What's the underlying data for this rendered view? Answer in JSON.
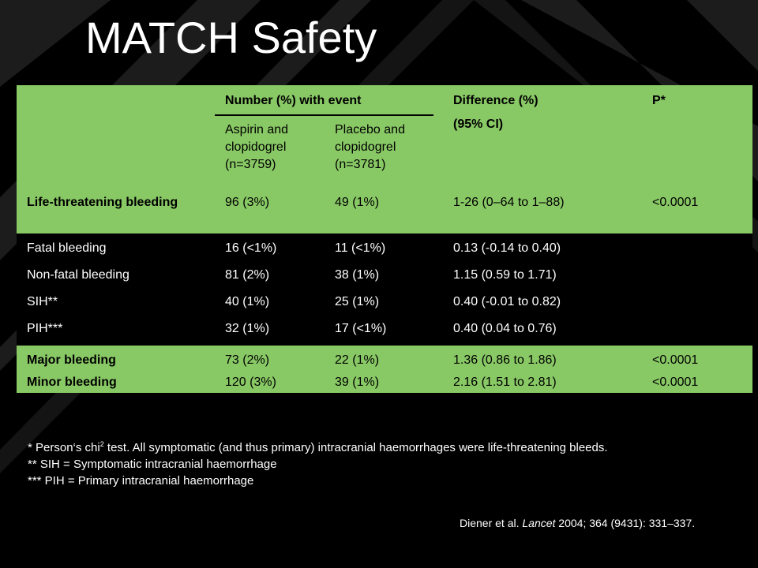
{
  "title": "MATCH Safety",
  "table": {
    "header": {
      "group_label": "Number (%)",
      "group_label_suffix": "with event",
      "diff_label": "Difference (%)",
      "diff_sub": "(95% CI)",
      "p_label": "P*",
      "col_aspirin": [
        "Aspirin and",
        "clopidogrel",
        "(n=3759)"
      ],
      "col_placebo": [
        "Placebo and",
        "clopidogrel",
        "(n=3781)"
      ]
    },
    "rows": [
      {
        "label": "Life-threatening bleeding",
        "aspirin": "96 (3%)",
        "placebo": "49 (1%)",
        "difference": "1-26 (0–64 to 1–88)",
        "p": "<0.0001"
      },
      {
        "label": "Fatal bleeding",
        "aspirin": "16 (<1%)",
        "placebo": "11 (<1%)",
        "difference": "0.13 (-0.14 to 0.40)",
        "p": ""
      },
      {
        "label": "Non-fatal bleeding",
        "aspirin": "81 (2%)",
        "placebo": "38 (1%)",
        "difference": "1.15 (0.59 to 1.71)",
        "p": ""
      },
      {
        "label": "SIH**",
        "aspirin": "40 (1%)",
        "placebo": "25 (1%)",
        "difference": "0.40 (-0.01 to 0.82)",
        "p": ""
      },
      {
        "label": "PIH***",
        "aspirin": "32 (1%)",
        "placebo": "17 (<1%)",
        "difference": "0.40 (0.04 to 0.76)",
        "p": ""
      },
      {
        "label": "Major bleeding",
        "aspirin": "73 (2%)",
        "placebo": "22 (1%)",
        "difference": "1.36 (0.86 to 1.86)",
        "p": "<0.0001"
      },
      {
        "label": "Minor bleeding",
        "aspirin": "120 (3%)",
        "placebo": "39 (1%)",
        "difference": "2.16 (1.51 to 2.81)",
        "p": "<0.0001"
      }
    ]
  },
  "footnotes": {
    "line1_a": "* Person‘s chi",
    "line1_sup": "2",
    "line1_b": " test. All symptomatic (and thus primary) intracranial haemorrhages were life-threatening bleeds.",
    "line2": "** SIH = Symptomatic intracranial haemorrhage",
    "line3": "*** PIH = Primary intracranial haemorrhage"
  },
  "citation": {
    "authors": "Diener et al. ",
    "journal": "Lancet",
    "rest": " 2004; 364 (9431): 331–337."
  }
}
